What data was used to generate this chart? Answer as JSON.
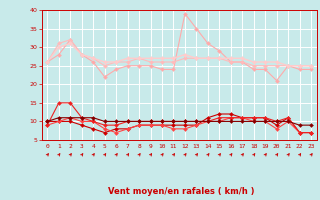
{
  "x": [
    0,
    1,
    2,
    3,
    4,
    5,
    6,
    7,
    8,
    9,
    10,
    11,
    12,
    13,
    14,
    15,
    16,
    17,
    18,
    19,
    20,
    21,
    22,
    23
  ],
  "series": [
    {
      "color": "#ffaaaa",
      "lw": 0.8,
      "marker": "D",
      "ms": 2.0,
      "values": [
        26,
        28,
        32,
        28,
        26,
        22,
        24,
        25,
        25,
        25,
        24,
        24,
        39,
        35,
        31,
        29,
        26,
        26,
        24,
        24,
        21,
        25,
        24,
        24
      ]
    },
    {
      "color": "#ffbbbb",
      "lw": 0.8,
      "marker": "D",
      "ms": 2.0,
      "values": [
        26,
        31,
        32,
        28,
        27,
        25,
        26,
        26,
        27,
        26,
        26,
        26,
        27,
        27,
        27,
        27,
        26,
        26,
        25,
        25,
        25,
        25,
        25,
        25
      ]
    },
    {
      "color": "#ffcccc",
      "lw": 1.0,
      "marker": "D",
      "ms": 2.0,
      "values": [
        26,
        30,
        31,
        28,
        27,
        26,
        26,
        27,
        27,
        27,
        27,
        27,
        28,
        27,
        27,
        27,
        27,
        27,
        26,
        26,
        26,
        25,
        25,
        25
      ]
    },
    {
      "color": "#cc0000",
      "lw": 0.8,
      "marker": "D",
      "ms": 2.0,
      "values": [
        10,
        10,
        10,
        9,
        8,
        7,
        8,
        8,
        9,
        9,
        9,
        9,
        9,
        9,
        11,
        12,
        12,
        11,
        11,
        11,
        9,
        11,
        7,
        7
      ]
    },
    {
      "color": "#ff4444",
      "lw": 0.8,
      "marker": "D",
      "ms": 2.0,
      "values": [
        9,
        10,
        11,
        10,
        10,
        8,
        7,
        8,
        9,
        9,
        9,
        8,
        8,
        9,
        10,
        10,
        11,
        11,
        10,
        10,
        8,
        10,
        7,
        7
      ]
    },
    {
      "color": "#ee2222",
      "lw": 0.8,
      "marker": "D",
      "ms": 2.0,
      "values": [
        9,
        15,
        15,
        11,
        10,
        9,
        9,
        10,
        10,
        10,
        10,
        10,
        10,
        10,
        10,
        11,
        11,
        11,
        11,
        11,
        10,
        11,
        7,
        7
      ]
    },
    {
      "color": "#880000",
      "lw": 0.8,
      "marker": "D",
      "ms": 2.0,
      "values": [
        10,
        11,
        11,
        11,
        11,
        10,
        10,
        10,
        10,
        10,
        10,
        10,
        10,
        10,
        10,
        10,
        10,
        10,
        10,
        10,
        10,
        10,
        9,
        9
      ]
    }
  ],
  "xlabel": "Vent moyen/en rafales ( km/h )",
  "ylim": [
    5,
    40
  ],
  "yticks": [
    5,
    10,
    15,
    20,
    25,
    30,
    35,
    40
  ],
  "xticks": [
    0,
    1,
    2,
    3,
    4,
    5,
    6,
    7,
    8,
    9,
    10,
    11,
    12,
    13,
    14,
    15,
    16,
    17,
    18,
    19,
    20,
    21,
    22,
    23
  ],
  "bg_color": "#c8eaea",
  "grid_color": "#ffffff",
  "tick_color": "#cc0000",
  "label_color": "#cc0000",
  "arrow_color": "#cc0000"
}
